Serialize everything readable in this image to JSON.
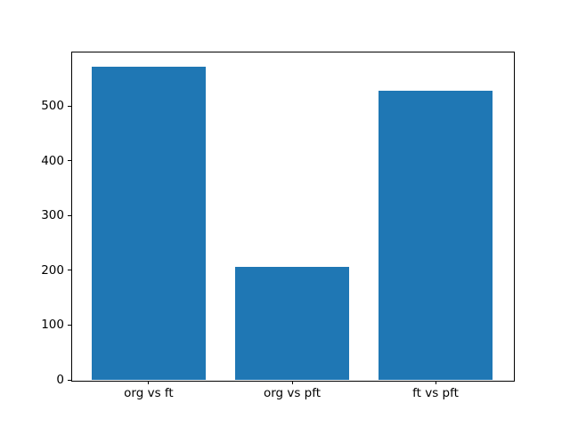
{
  "chart_data": {
    "type": "bar",
    "title": "",
    "xlabel": "",
    "ylabel": "",
    "categories": [
      "org vs ft",
      "org vs pft",
      "ft vs pft"
    ],
    "values": [
      572,
      207,
      528
    ],
    "yticks": [
      0,
      100,
      200,
      300,
      400,
      500
    ],
    "ylim": [
      0,
      600
    ],
    "bar_color": "#1f77b4",
    "background_color": "#ffffff",
    "spine_color": "#000000",
    "bar_width_fraction": 0.8,
    "grid": false,
    "legend": null
  }
}
